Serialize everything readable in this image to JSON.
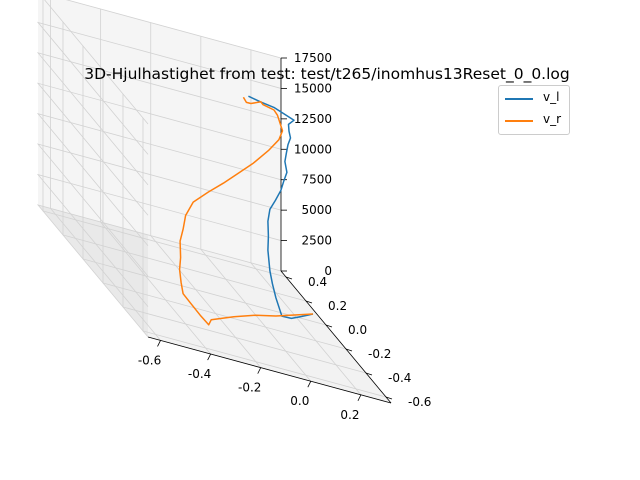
{
  "chart_data": {
    "type": "line",
    "projection": "3d",
    "title": "3D-Hjulhastighet from test: test/t265/inomhus13Reset_0_0.log",
    "xlabel": "",
    "ylabel": "",
    "zlabel": "",
    "xlim": [
      -0.65,
      0.32
    ],
    "ylim": [
      -0.65,
      0.45
    ],
    "zlim": [
      0,
      17500
    ],
    "x_ticks": [
      -0.6,
      -0.4,
      -0.2,
      0.0,
      0.2
    ],
    "x_tick_labels": [
      "-0.6",
      "-0.4",
      "-0.2",
      "0.0",
      "0.2"
    ],
    "y_ticks": [
      -0.6,
      -0.4,
      -0.2,
      0.0,
      0.2,
      0.4
    ],
    "y_tick_labels": [
      "-0.6",
      "-0.4",
      "-0.2",
      "0.0",
      "0.2",
      "0.4"
    ],
    "z_ticks": [
      0,
      2500,
      5000,
      7500,
      10000,
      12500,
      15000,
      17500
    ],
    "z_tick_labels": [
      "0",
      "2500",
      "5000",
      "7500",
      "10000",
      "12500",
      "15000",
      "17500"
    ],
    "grid": true,
    "legend_position": "top-right",
    "series": [
      {
        "name": "v_l",
        "color": "#1f77b4",
        "points": [
          [
            0.3,
            0.08,
            0
          ],
          [
            0.23,
            0.02,
            0
          ],
          [
            0.17,
            -0.03,
            0
          ],
          [
            0.12,
            -0.06,
            200
          ],
          [
            0.1,
            -0.05,
            1500
          ],
          [
            0.09,
            -0.04,
            2500
          ],
          [
            0.08,
            -0.04,
            3500
          ],
          [
            0.08,
            -0.02,
            5000
          ],
          [
            0.09,
            0.0,
            6000
          ],
          [
            0.1,
            0.03,
            7000
          ],
          [
            0.12,
            0.06,
            7800
          ],
          [
            0.15,
            0.08,
            8500
          ],
          [
            0.18,
            0.1,
            9300
          ],
          [
            0.2,
            0.12,
            10000
          ],
          [
            0.22,
            0.14,
            10600
          ],
          [
            0.22,
            0.16,
            11300
          ],
          [
            0.23,
            0.17,
            12000
          ],
          [
            0.24,
            0.18,
            12600
          ],
          [
            0.25,
            0.18,
            13200
          ],
          [
            0.24,
            0.17,
            13800
          ],
          [
            0.23,
            0.15,
            14500
          ],
          [
            0.24,
            0.12,
            15200
          ],
          [
            0.16,
            0.12,
            15800
          ],
          [
            0.1,
            0.1,
            16100
          ],
          [
            0.05,
            0.1,
            16300
          ]
        ]
      },
      {
        "name": "v_r",
        "color": "#ff7f0e",
        "points": [
          [
            0.3,
            0.08,
            0
          ],
          [
            0.1,
            -0.05,
            0
          ],
          [
            0.0,
            -0.1,
            0
          ],
          [
            -0.12,
            -0.18,
            0
          ],
          [
            -0.25,
            -0.28,
            0
          ],
          [
            -0.3,
            -0.38,
            300
          ],
          [
            -0.35,
            -0.42,
            1200
          ],
          [
            -0.4,
            -0.45,
            2200
          ],
          [
            -0.45,
            -0.5,
            3200
          ],
          [
            -0.47,
            -0.53,
            4300
          ],
          [
            -0.48,
            -0.54,
            5400
          ],
          [
            -0.48,
            -0.55,
            6500
          ],
          [
            -0.47,
            -0.52,
            7600
          ],
          [
            -0.45,
            -0.5,
            8500
          ],
          [
            -0.42,
            -0.45,
            9300
          ],
          [
            -0.35,
            -0.35,
            9800
          ],
          [
            -0.25,
            -0.25,
            10200
          ],
          [
            -0.15,
            -0.15,
            10500
          ],
          [
            -0.05,
            -0.05,
            10900
          ],
          [
            0.05,
            0.05,
            11300
          ],
          [
            0.15,
            0.15,
            11900
          ],
          [
            0.22,
            0.22,
            12500
          ],
          [
            0.25,
            0.26,
            13000
          ],
          [
            0.27,
            0.36,
            13400
          ],
          [
            0.28,
            0.42,
            13300
          ],
          [
            0.22,
            0.38,
            13800
          ],
          [
            0.18,
            0.3,
            14600
          ],
          [
            0.1,
            0.2,
            15000
          ],
          [
            0.05,
            0.12,
            15600
          ],
          [
            0.03,
            0.1,
            16100
          ]
        ]
      }
    ]
  }
}
